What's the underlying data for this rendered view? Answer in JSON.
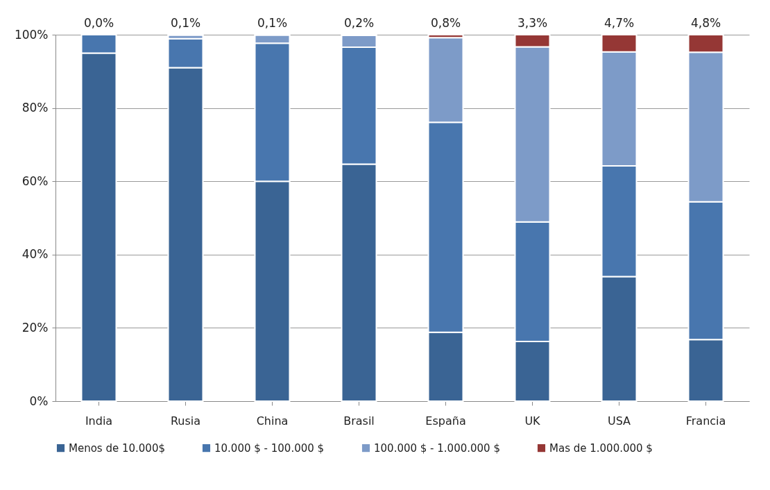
{
  "chart_data": {
    "type": "bar",
    "stacked": true,
    "categories": [
      "India",
      "Rusia",
      "China",
      "Brasil",
      "España",
      "UK",
      "USA",
      "Francia"
    ],
    "series": [
      {
        "name": "Menos de 10.000$",
        "color": "#3a6494",
        "values": [
          95,
          91,
          60,
          64.7,
          18.8,
          16.3,
          34,
          16.8
        ]
      },
      {
        "name": "10.000 $ - 100.000 $",
        "color": "#4876ae",
        "values": [
          5,
          7.9,
          37.7,
          31.9,
          57.3,
          32.6,
          30.2,
          37.6
        ]
      },
      {
        "name": "100.000 $ - 1.000.000 $",
        "color": "#7d9bc8",
        "values": [
          null,
          1,
          2.2,
          3.2,
          23.1,
          47.8,
          31.1,
          40.8
        ]
      },
      {
        "name": "Mas de 1.000.000 $",
        "color": "#953735",
        "values": [
          null,
          0.1,
          0.1,
          0.2,
          0.8,
          3.3,
          4.7,
          4.8
        ],
        "value_labels": [
          "0,0%",
          "0,1%",
          "0,1%",
          "0,2%",
          "0,8%",
          "3,3%",
          "4,7%",
          "4,8%"
        ]
      }
    ],
    "ylim": [
      0,
      100
    ],
    "yticks": [
      {
        "value": 0,
        "label": "0%"
      },
      {
        "value": 20,
        "label": "20%"
      },
      {
        "value": 40,
        "label": "40%"
      },
      {
        "value": 60,
        "label": "60%"
      },
      {
        "value": 80,
        "label": "80%"
      },
      {
        "value": 100,
        "label": "100%"
      }
    ],
    "grid": "y",
    "legend": "bottom"
  }
}
